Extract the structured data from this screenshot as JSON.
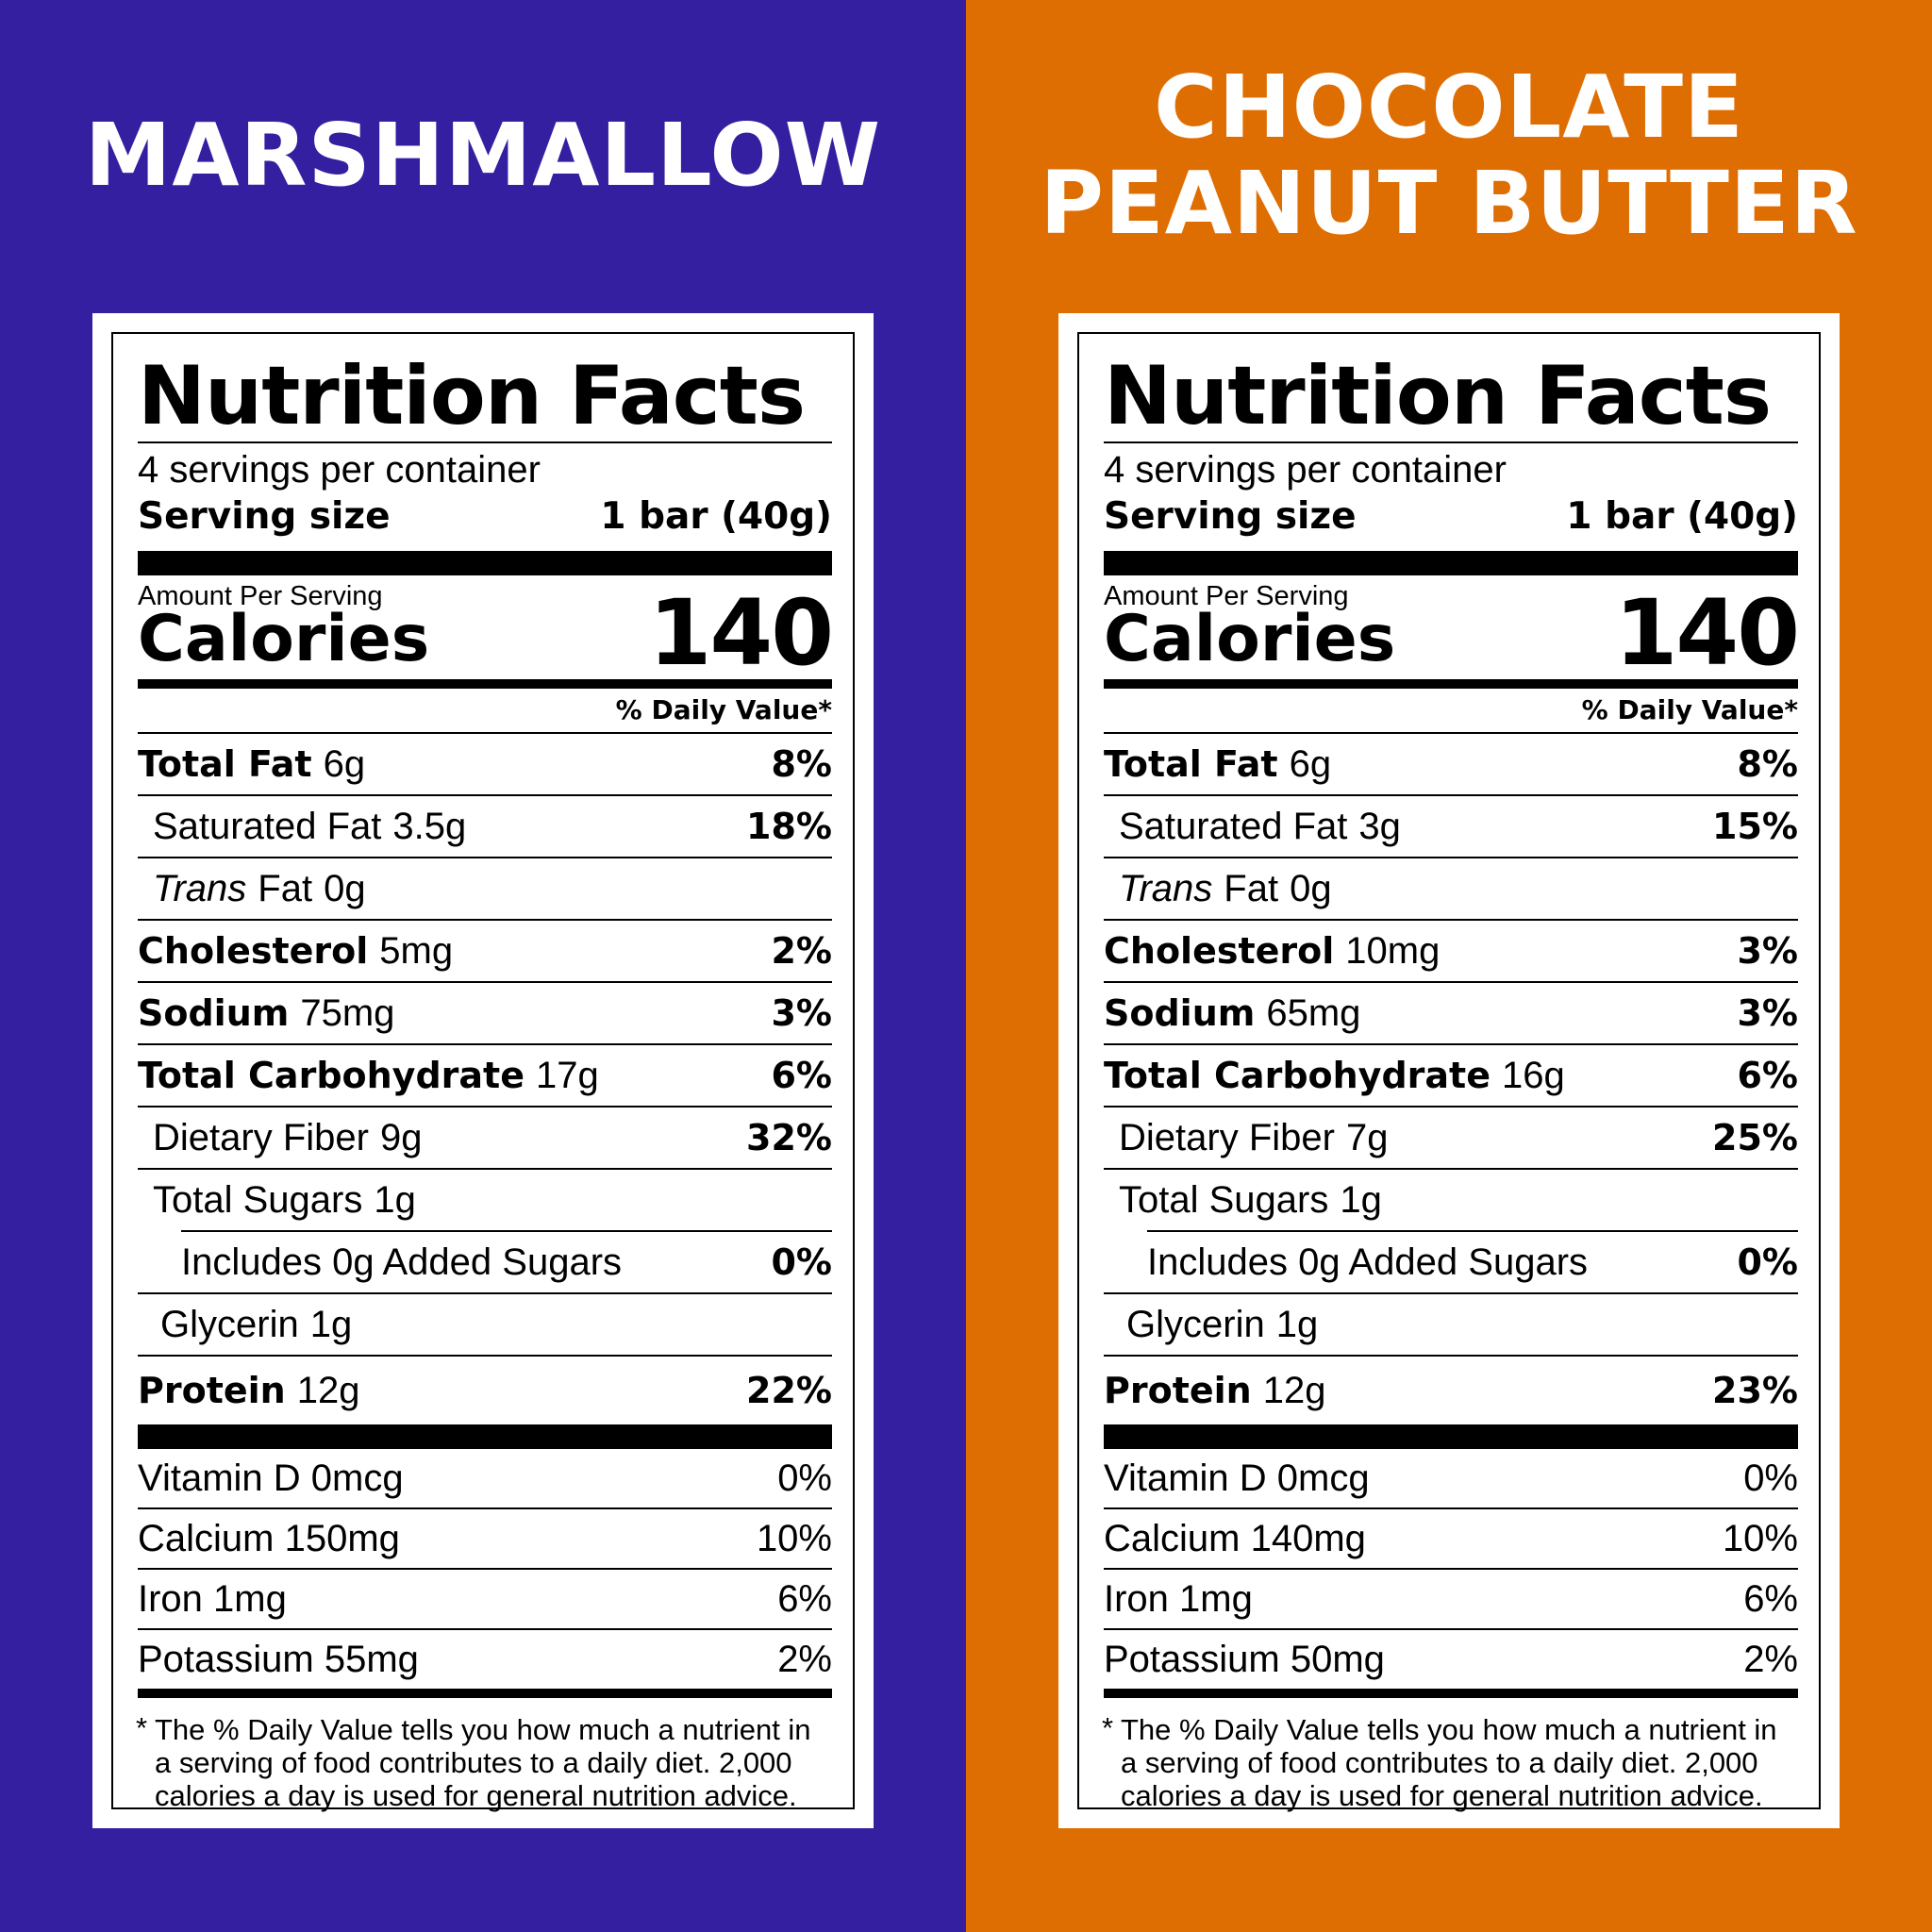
{
  "panels": [
    {
      "id": "marshmallow",
      "background": "#331FA0",
      "flavor_lines": [
        "MARSHMALLOW"
      ],
      "label": {
        "title": "Nutrition Facts",
        "servings_per_container": "4 servings per container",
        "serving_size_label": "Serving size",
        "serving_size_value": "1 bar (40g)",
        "amount_per_serving": "Amount Per Serving",
        "calories_label": "Calories",
        "calories_value": "140",
        "dv_header": "% Daily Value*",
        "total_fat": {
          "label": "Total Fat",
          "amount": "6g",
          "dv": "8%"
        },
        "saturated_fat": {
          "label": "Saturated Fat",
          "amount": "3.5g",
          "dv": "18%"
        },
        "trans_fat": {
          "label_italic": "Trans",
          "label_rest": "Fat",
          "amount": "0g"
        },
        "cholesterol": {
          "label": "Cholesterol",
          "amount": "5mg",
          "dv": "2%"
        },
        "sodium": {
          "label": "Sodium",
          "amount": "75mg",
          "dv": "3%"
        },
        "total_carbohydrate": {
          "label": "Total Carbohydrate",
          "amount": "17g",
          "dv": "6%"
        },
        "dietary_fiber": {
          "label": "Dietary Fiber",
          "amount": "9g",
          "dv": "32%"
        },
        "total_sugars": {
          "label": "Total Sugars",
          "amount": "1g"
        },
        "added_sugars": {
          "text": "Includes 0g Added Sugars",
          "dv": "0%"
        },
        "glycerin": {
          "label": "Glycerin",
          "amount": "1g"
        },
        "protein": {
          "label": "Protein",
          "amount": "12g",
          "dv": "22%"
        },
        "vitamin_d": {
          "text": "Vitamin D 0mcg",
          "dv": "0%"
        },
        "calcium": {
          "text": "Calcium 150mg",
          "dv": "10%"
        },
        "iron": {
          "text": "Iron 1mg",
          "dv": "6%"
        },
        "potassium": {
          "text": "Potassium 55mg",
          "dv": "2%"
        },
        "footnote_star": "*",
        "footnote": "The % Daily Value tells you how much a nutrient in a serving of food contributes to a daily diet. 2,000 calories a day is used for general nutrition advice."
      }
    },
    {
      "id": "chocolate-peanut-butter",
      "background": "#DF6E02",
      "flavor_lines": [
        "CHOCOLATE",
        "PEANUT BUTTER"
      ],
      "label": {
        "title": "Nutrition Facts",
        "servings_per_container": "4 servings per container",
        "serving_size_label": "Serving size",
        "serving_size_value": "1 bar (40g)",
        "amount_per_serving": "Amount Per Serving",
        "calories_label": "Calories",
        "calories_value": "140",
        "dv_header": "% Daily Value*",
        "total_fat": {
          "label": "Total Fat",
          "amount": "6g",
          "dv": "8%"
        },
        "saturated_fat": {
          "label": "Saturated Fat",
          "amount": "3g",
          "dv": "15%"
        },
        "trans_fat": {
          "label_italic": "Trans",
          "label_rest": "Fat",
          "amount": "0g"
        },
        "cholesterol": {
          "label": "Cholesterol",
          "amount": "10mg",
          "dv": "3%"
        },
        "sodium": {
          "label": "Sodium",
          "amount": "65mg",
          "dv": "3%"
        },
        "total_carbohydrate": {
          "label": "Total Carbohydrate",
          "amount": "16g",
          "dv": "6%"
        },
        "dietary_fiber": {
          "label": "Dietary Fiber",
          "amount": "7g",
          "dv": "25%"
        },
        "total_sugars": {
          "label": "Total Sugars",
          "amount": "1g"
        },
        "added_sugars": {
          "text": "Includes 0g Added Sugars",
          "dv": "0%"
        },
        "glycerin": {
          "label": "Glycerin",
          "amount": "1g"
        },
        "protein": {
          "label": "Protein",
          "amount": "12g",
          "dv": "23%"
        },
        "vitamin_d": {
          "text": "Vitamin D 0mcg",
          "dv": "0%"
        },
        "calcium": {
          "text": "Calcium 140mg",
          "dv": "10%"
        },
        "iron": {
          "text": "Iron 1mg",
          "dv": "6%"
        },
        "potassium": {
          "text": "Potassium 50mg",
          "dv": "2%"
        },
        "footnote_star": "*",
        "footnote": "The % Daily Value tells you how much a nutrient in a serving of food contributes to a daily diet. 2,000 calories a day is used for general nutrition advice."
      }
    }
  ]
}
